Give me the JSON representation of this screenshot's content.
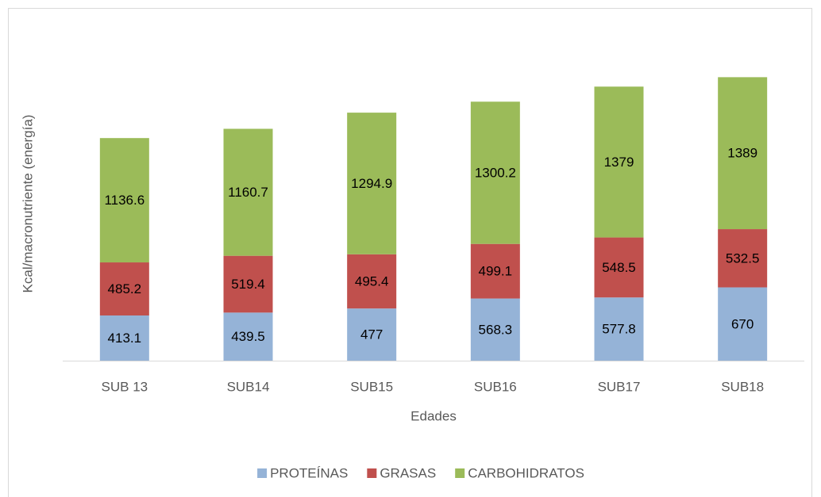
{
  "chart_data": {
    "type": "stacked_bar",
    "x_label": "Edades",
    "y_label": "Kcal/macronutriente (energía)",
    "categories": [
      "SUB 13",
      "SUB14",
      "SUB15",
      "SUB16",
      "SUB17",
      "SUB18"
    ],
    "series": [
      {
        "name": "PROTEÍNAS",
        "color": "#95b3d7",
        "values": [
          413.1,
          439.5,
          477,
          568.3,
          577.8,
          670
        ]
      },
      {
        "name": "GRASAS",
        "color": "#c0504d",
        "values": [
          485.2,
          519.4,
          495.4,
          499.1,
          548.5,
          532.5
        ]
      },
      {
        "name": "CARBOHIDRATOS",
        "color": "#9bbb59",
        "values": [
          1136.6,
          1160.7,
          1294.9,
          1300.2,
          1379,
          1389
        ]
      }
    ],
    "ylim": [
      0,
      3000
    ],
    "legend": "bottom"
  }
}
